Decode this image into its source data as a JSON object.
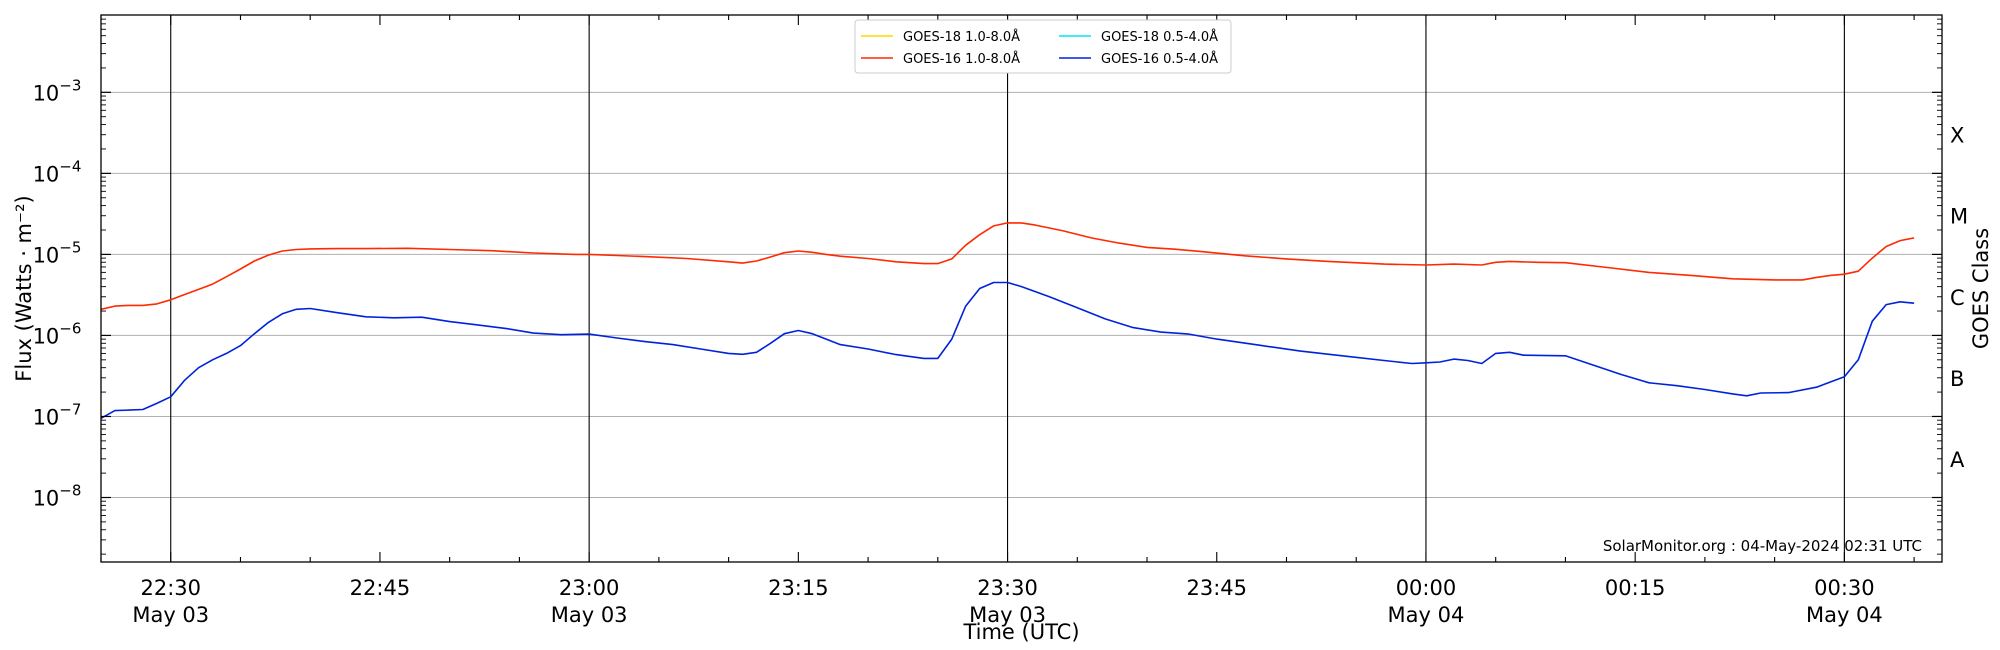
{
  "chart_data": {
    "type": "line",
    "xlabel": "Time (UTC)",
    "ylabel": "Flux (Watts · m⁻²)",
    "ylabel_right": "GOES Class",
    "y_scale": "log",
    "ylim": [
      1.6e-09,
      0.009
    ],
    "xlim": [
      "2024-05-03 22:25",
      "2024-05-04 00:37"
    ],
    "grid": "horizontal at decades",
    "y_ticks": [
      {
        "value": 1e-08,
        "base": "10",
        "exp": "−8"
      },
      {
        "value": 1e-07,
        "base": "10",
        "exp": "−7"
      },
      {
        "value": 1e-06,
        "base": "10",
        "exp": "−6"
      },
      {
        "value": 1e-05,
        "base": "10",
        "exp": "−5"
      },
      {
        "value": 0.0001,
        "base": "10",
        "exp": "−4"
      },
      {
        "value": 0.001,
        "base": "10",
        "exp": "−3"
      }
    ],
    "class_labels": [
      {
        "label": "A",
        "value": 3e-08
      },
      {
        "label": "B",
        "value": 3e-07
      },
      {
        "label": "C",
        "value": 3e-06
      },
      {
        "label": "M",
        "value": 3e-05
      },
      {
        "label": "X",
        "value": 0.0003
      }
    ],
    "x_ticks": [
      {
        "time": "2024-05-03 22:30",
        "time_label": "22:30",
        "date_label": "May 03"
      },
      {
        "time": "2024-05-03 22:45",
        "time_label": "22:45",
        "date_label": ""
      },
      {
        "time": "2024-05-03 23:00",
        "time_label": "23:00",
        "date_label": "May 03"
      },
      {
        "time": "2024-05-03 23:15",
        "time_label": "23:15",
        "date_label": ""
      },
      {
        "time": "2024-05-03 23:30",
        "time_label": "23:30",
        "date_label": "May 03"
      },
      {
        "time": "2024-05-03 23:45",
        "time_label": "23:45",
        "date_label": ""
      },
      {
        "time": "2024-05-04 00:00",
        "time_label": "00:00",
        "date_label": "May 04"
      },
      {
        "time": "2024-05-04 00:15",
        "time_label": "00:15",
        "date_label": ""
      },
      {
        "time": "2024-05-04 00:30",
        "time_label": "00:30",
        "date_label": "May 04"
      }
    ],
    "vertical_lines": [
      "2024-05-03 22:30",
      "2024-05-03 23:00",
      "2024-05-03 23:30",
      "2024-05-04 00:00",
      "2024-05-04 00:30"
    ],
    "legend": {
      "placement": "top-center",
      "entries": [
        {
          "name": "GOES-18 1.0-8.0Å",
          "color": "#ffd700"
        },
        {
          "name": "GOES-18 0.5-4.0Å",
          "color": "#00e5ee"
        },
        {
          "name": "GOES-16 1.0-8.0Å",
          "color": "#ff2a00"
        },
        {
          "name": "GOES-16 0.5-4.0Å",
          "color": "#0022dd"
        }
      ]
    },
    "series": [
      {
        "name": "GOES-16 1.0-8.0Å",
        "color": "#ff2a00",
        "points": [
          [
            "2024-05-03 22:25",
            2.1e-06
          ],
          [
            "2024-05-03 22:26",
            2.3e-06
          ],
          [
            "2024-05-03 22:27",
            2.35e-06
          ],
          [
            "2024-05-03 22:28",
            2.35e-06
          ],
          [
            "2024-05-03 22:29",
            2.45e-06
          ],
          [
            "2024-05-03 22:30",
            2.75e-06
          ],
          [
            "2024-05-03 22:31",
            3.2e-06
          ],
          [
            "2024-05-03 22:32",
            3.7e-06
          ],
          [
            "2024-05-03 22:33",
            4.3e-06
          ],
          [
            "2024-05-03 22:34",
            5.3e-06
          ],
          [
            "2024-05-03 22:35",
            6.6e-06
          ],
          [
            "2024-05-03 22:36",
            8.3e-06
          ],
          [
            "2024-05-03 22:37",
            9.8e-06
          ],
          [
            "2024-05-03 22:38",
            1.1e-05
          ],
          [
            "2024-05-03 22:39",
            1.15e-05
          ],
          [
            "2024-05-03 22:40",
            1.17e-05
          ],
          [
            "2024-05-03 22:42",
            1.18e-05
          ],
          [
            "2024-05-03 22:44",
            1.18e-05
          ],
          [
            "2024-05-03 22:47",
            1.19e-05
          ],
          [
            "2024-05-03 22:50",
            1.15e-05
          ],
          [
            "2024-05-03 22:53",
            1.11e-05
          ],
          [
            "2024-05-03 22:56",
            1.04e-05
          ],
          [
            "2024-05-03 22:59",
            1e-05
          ],
          [
            "2024-05-03 23:00",
            1e-05
          ],
          [
            "2024-05-03 23:02",
            9.7e-06
          ],
          [
            "2024-05-03 23:04",
            9.4e-06
          ],
          [
            "2024-05-03 23:07",
            8.9e-06
          ],
          [
            "2024-05-03 23:10",
            8.1e-06
          ],
          [
            "2024-05-03 23:11",
            7.8e-06
          ],
          [
            "2024-05-03 23:12",
            8.3e-06
          ],
          [
            "2024-05-03 23:13",
            9.3e-06
          ],
          [
            "2024-05-03 23:14",
            1.05e-05
          ],
          [
            "2024-05-03 23:15",
            1.1e-05
          ],
          [
            "2024-05-03 23:16",
            1.06e-05
          ],
          [
            "2024-05-03 23:17",
            1e-05
          ],
          [
            "2024-05-03 23:18",
            9.5e-06
          ],
          [
            "2024-05-03 23:20",
            8.9e-06
          ],
          [
            "2024-05-03 23:22",
            8.1e-06
          ],
          [
            "2024-05-03 23:24",
            7.7e-06
          ],
          [
            "2024-05-03 23:25",
            7.7e-06
          ],
          [
            "2024-05-03 23:26",
            8.8e-06
          ],
          [
            "2024-05-03 23:27",
            1.3e-05
          ],
          [
            "2024-05-03 23:28",
            1.75e-05
          ],
          [
            "2024-05-03 23:29",
            2.25e-05
          ],
          [
            "2024-05-03 23:30",
            2.45e-05
          ],
          [
            "2024-05-03 23:31",
            2.45e-05
          ],
          [
            "2024-05-03 23:32",
            2.3e-05
          ],
          [
            "2024-05-03 23:34",
            1.95e-05
          ],
          [
            "2024-05-03 23:36",
            1.6e-05
          ],
          [
            "2024-05-03 23:38",
            1.38e-05
          ],
          [
            "2024-05-03 23:40",
            1.22e-05
          ],
          [
            "2024-05-03 23:42",
            1.16e-05
          ],
          [
            "2024-05-03 23:44",
            1.08e-05
          ],
          [
            "2024-05-03 23:47",
            9.6e-06
          ],
          [
            "2024-05-03 23:50",
            8.8e-06
          ],
          [
            "2024-05-03 23:53",
            8.2e-06
          ],
          [
            "2024-05-03 23:57",
            7.6e-06
          ],
          [
            "2024-05-04 00:00",
            7.4e-06
          ],
          [
            "2024-05-04 00:02",
            7.6e-06
          ],
          [
            "2024-05-04 00:04",
            7.4e-06
          ],
          [
            "2024-05-04 00:05",
            8e-06
          ],
          [
            "2024-05-04 00:06",
            8.2e-06
          ],
          [
            "2024-05-04 00:08",
            8e-06
          ],
          [
            "2024-05-04 00:10",
            7.9e-06
          ],
          [
            "2024-05-04 00:13",
            6.9e-06
          ],
          [
            "2024-05-04 00:16",
            6e-06
          ],
          [
            "2024-05-04 00:19",
            5.5e-06
          ],
          [
            "2024-05-04 00:22",
            5e-06
          ],
          [
            "2024-05-04 00:25",
            4.85e-06
          ],
          [
            "2024-05-04 00:27",
            4.85e-06
          ],
          [
            "2024-05-04 00:28",
            5.2e-06
          ],
          [
            "2024-05-04 00:29",
            5.5e-06
          ],
          [
            "2024-05-04 00:30",
            5.7e-06
          ],
          [
            "2024-05-04 00:31",
            6.2e-06
          ],
          [
            "2024-05-04 00:32",
            9e-06
          ],
          [
            "2024-05-04 00:33",
            1.25e-05
          ],
          [
            "2024-05-04 00:34",
            1.48e-05
          ],
          [
            "2024-05-04 00:35",
            1.6e-05
          ]
        ]
      },
      {
        "name": "GOES-16 0.5-4.0Å",
        "color": "#0022dd",
        "points": [
          [
            "2024-05-03 22:25",
            9.5e-08
          ],
          [
            "2024-05-03 22:26",
            1.18e-07
          ],
          [
            "2024-05-03 22:27",
            1.2e-07
          ],
          [
            "2024-05-03 22:28",
            1.22e-07
          ],
          [
            "2024-05-03 22:29",
            1.45e-07
          ],
          [
            "2024-05-03 22:30",
            1.75e-07
          ],
          [
            "2024-05-03 22:31",
            2.8e-07
          ],
          [
            "2024-05-03 22:32",
            4e-07
          ],
          [
            "2024-05-03 22:33",
            5e-07
          ],
          [
            "2024-05-03 22:34",
            6e-07
          ],
          [
            "2024-05-03 22:35",
            7.5e-07
          ],
          [
            "2024-05-03 22:36",
            1.05e-06
          ],
          [
            "2024-05-03 22:37",
            1.45e-06
          ],
          [
            "2024-05-03 22:38",
            1.85e-06
          ],
          [
            "2024-05-03 22:39",
            2.1e-06
          ],
          [
            "2024-05-03 22:40",
            2.15e-06
          ],
          [
            "2024-05-03 22:42",
            1.9e-06
          ],
          [
            "2024-05-03 22:44",
            1.7e-06
          ],
          [
            "2024-05-03 22:46",
            1.65e-06
          ],
          [
            "2024-05-03 22:48",
            1.68e-06
          ],
          [
            "2024-05-03 22:50",
            1.48e-06
          ],
          [
            "2024-05-03 22:52",
            1.35e-06
          ],
          [
            "2024-05-03 22:54",
            1.22e-06
          ],
          [
            "2024-05-03 22:56",
            1.07e-06
          ],
          [
            "2024-05-03 22:58",
            1.02e-06
          ],
          [
            "2024-05-03 23:00",
            1.04e-06
          ],
          [
            "2024-05-03 23:02",
            9.3e-07
          ],
          [
            "2024-05-03 23:04",
            8.4e-07
          ],
          [
            "2024-05-03 23:06",
            7.7e-07
          ],
          [
            "2024-05-03 23:08",
            6.8e-07
          ],
          [
            "2024-05-03 23:10",
            6e-07
          ],
          [
            "2024-05-03 23:11",
            5.85e-07
          ],
          [
            "2024-05-03 23:12",
            6.2e-07
          ],
          [
            "2024-05-03 23:13",
            8e-07
          ],
          [
            "2024-05-03 23:14",
            1.05e-06
          ],
          [
            "2024-05-03 23:15",
            1.15e-06
          ],
          [
            "2024-05-03 23:16",
            1.05e-06
          ],
          [
            "2024-05-03 23:17",
            9e-07
          ],
          [
            "2024-05-03 23:18",
            7.7e-07
          ],
          [
            "2024-05-03 23:20",
            6.8e-07
          ],
          [
            "2024-05-03 23:22",
            5.8e-07
          ],
          [
            "2024-05-03 23:24",
            5.2e-07
          ],
          [
            "2024-05-03 23:25",
            5.2e-07
          ],
          [
            "2024-05-03 23:26",
            9e-07
          ],
          [
            "2024-05-03 23:27",
            2.3e-06
          ],
          [
            "2024-05-03 23:28",
            3.8e-06
          ],
          [
            "2024-05-03 23:29",
            4.5e-06
          ],
          [
            "2024-05-03 23:30",
            4.5e-06
          ],
          [
            "2024-05-03 23:31",
            4e-06
          ],
          [
            "2024-05-03 23:33",
            3e-06
          ],
          [
            "2024-05-03 23:35",
            2.2e-06
          ],
          [
            "2024-05-03 23:37",
            1.6e-06
          ],
          [
            "2024-05-03 23:39",
            1.25e-06
          ],
          [
            "2024-05-03 23:41",
            1.1e-06
          ],
          [
            "2024-05-03 23:43",
            1.04e-06
          ],
          [
            "2024-05-03 23:45",
            9e-07
          ],
          [
            "2024-05-03 23:48",
            7.6e-07
          ],
          [
            "2024-05-03 23:51",
            6.4e-07
          ],
          [
            "2024-05-03 23:54",
            5.6e-07
          ],
          [
            "2024-05-03 23:57",
            4.9e-07
          ],
          [
            "2024-05-03 23:59",
            4.5e-07
          ],
          [
            "2024-05-04 00:00",
            4.6e-07
          ],
          [
            "2024-05-04 00:01",
            4.7e-07
          ],
          [
            "2024-05-04 00:02",
            5.1e-07
          ],
          [
            "2024-05-04 00:03",
            4.9e-07
          ],
          [
            "2024-05-04 00:04",
            4.5e-07
          ],
          [
            "2024-05-04 00:05",
            6e-07
          ],
          [
            "2024-05-04 00:06",
            6.2e-07
          ],
          [
            "2024-05-04 00:07",
            5.7e-07
          ],
          [
            "2024-05-04 00:10",
            5.6e-07
          ],
          [
            "2024-05-04 00:12",
            4.3e-07
          ],
          [
            "2024-05-04 00:14",
            3.3e-07
          ],
          [
            "2024-05-04 00:16",
            2.6e-07
          ],
          [
            "2024-05-04 00:18",
            2.4e-07
          ],
          [
            "2024-05-04 00:20",
            2.15e-07
          ],
          [
            "2024-05-04 00:22",
            1.9e-07
          ],
          [
            "2024-05-04 00:23",
            1.8e-07
          ],
          [
            "2024-05-04 00:24",
            1.95e-07
          ],
          [
            "2024-05-04 00:26",
            1.97e-07
          ],
          [
            "2024-05-04 00:28",
            2.3e-07
          ],
          [
            "2024-05-04 00:30",
            3.1e-07
          ],
          [
            "2024-05-04 00:31",
            5e-07
          ],
          [
            "2024-05-04 00:32",
            1.5e-06
          ],
          [
            "2024-05-04 00:33",
            2.4e-06
          ],
          [
            "2024-05-04 00:34",
            2.6e-06
          ],
          [
            "2024-05-04 00:35",
            2.5e-06
          ]
        ]
      }
    ],
    "credit": "SolarMonitor.org : 04-May-2024 02:31 UTC"
  }
}
